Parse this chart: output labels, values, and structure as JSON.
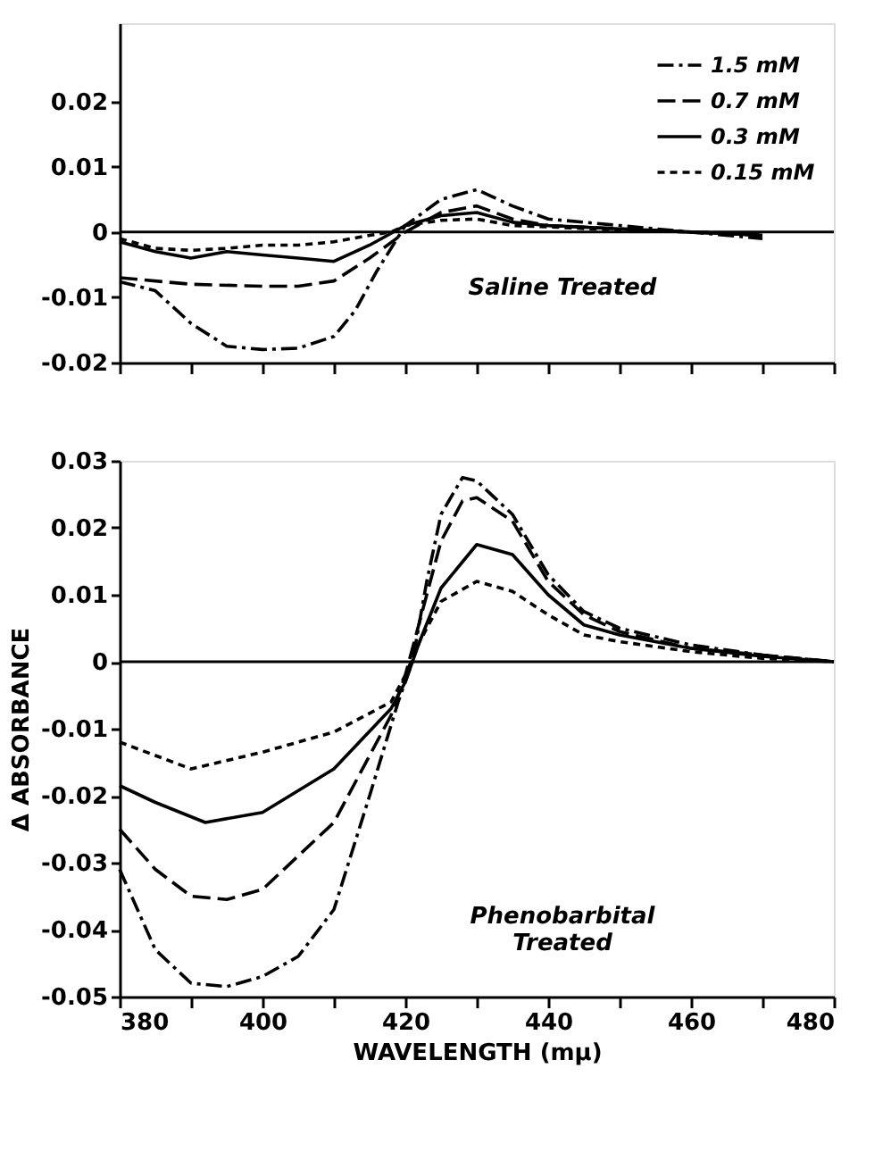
{
  "chart_data": [
    {
      "type": "line",
      "xlim": [
        380,
        480
      ],
      "xticks": [
        380,
        390,
        400,
        410,
        420,
        430,
        440,
        450,
        460,
        470,
        480
      ],
      "ylim": [
        -0.02,
        0.032
      ],
      "yticks": [
        -0.02,
        -0.01,
        0,
        0.01,
        0.02
      ],
      "tick_labels": "y",
      "grid": false,
      "legend": "top right",
      "marker": "none",
      "annotations": [
        "Saline Treated"
      ],
      "ref_lines": [
        {
          "axis": "y",
          "value": 0,
          "label": null,
          "color": "#000000",
          "line_style": "solid"
        }
      ],
      "series": [
        {
          "name": "1.5 mM",
          "color": "#000000",
          "line_style": "dashdot",
          "x": [
            380,
            385,
            390,
            395,
            400,
            405,
            410,
            413,
            416,
            420,
            425,
            430,
            435,
            440,
            450,
            460,
            470
          ],
          "values": [
            -0.0076,
            -0.009,
            -0.014,
            -0.0175,
            -0.018,
            -0.0178,
            -0.016,
            -0.012,
            -0.006,
            0.001,
            0.005,
            0.0065,
            0.004,
            0.002,
            0.001,
            0.0,
            -0.001
          ]
        },
        {
          "name": "0.7 mM",
          "color": "#000000",
          "line_style": "dashed",
          "x": [
            380,
            390,
            400,
            405,
            410,
            415,
            420,
            425,
            430,
            435,
            440,
            450,
            460,
            470
          ],
          "values": [
            -0.007,
            -0.008,
            -0.0083,
            -0.0083,
            -0.0075,
            -0.004,
            0.0,
            0.003,
            0.004,
            0.002,
            0.001,
            0.0005,
            0.0,
            -0.0005
          ]
        },
        {
          "name": "0.3 mM",
          "color": "#000000",
          "line_style": "solid",
          "x": [
            380,
            385,
            390,
            395,
            400,
            405,
            410,
            415,
            420,
            425,
            430,
            435,
            440,
            450,
            460,
            470
          ],
          "values": [
            -0.0015,
            -0.003,
            -0.004,
            -0.003,
            -0.0035,
            -0.004,
            -0.0045,
            -0.002,
            0.001,
            0.0025,
            0.003,
            0.0015,
            0.001,
            0.0005,
            0.0,
            -0.0005
          ]
        },
        {
          "name": "0.15 mM",
          "color": "#000000",
          "line_style": "dotted",
          "x": [
            380,
            385,
            390,
            395,
            400,
            405,
            410,
            415,
            418,
            420,
            425,
            430,
            435,
            440,
            450,
            460,
            470
          ],
          "values": [
            -0.001,
            -0.0025,
            -0.0028,
            -0.0025,
            -0.002,
            -0.002,
            -0.0015,
            -0.0005,
            0.0,
            0.001,
            0.0018,
            0.002,
            0.001,
            0.0008,
            0.0003,
            0.0,
            -0.0003
          ]
        }
      ]
    },
    {
      "type": "line",
      "xlabel": "WAVELENGTH (mµ)",
      "ylabel": "Δ ABSORBANCE",
      "xlim": [
        380,
        480
      ],
      "xticks": [
        380,
        {
          "value": 390,
          "label": null
        },
        400,
        {
          "value": 410,
          "label": null
        },
        420,
        {
          "value": 430,
          "label": null
        },
        440,
        {
          "value": 450,
          "label": null
        },
        460,
        {
          "value": 470,
          "label": null
        },
        480
      ],
      "ylim": [
        -0.05,
        0.03
      ],
      "yticks": [
        -0.05,
        -0.04,
        -0.03,
        -0.02,
        -0.01,
        0,
        0.01,
        0.02,
        0.03
      ],
      "grid": false,
      "legend": false,
      "marker": "none",
      "annotations": [
        "Phenobarbital Treated"
      ],
      "ref_lines": [
        {
          "axis": "y",
          "value": 0,
          "label": null,
          "color": "#000000",
          "line_style": "solid"
        }
      ],
      "series": [
        {
          "color": "#000000",
          "line_style": "dashdot",
          "x": [
            380,
            385,
            390,
            395,
            400,
            405,
            410,
            415,
            419,
            421,
            423,
            425,
            428,
            430,
            435,
            440,
            445,
            450,
            460,
            470,
            480
          ],
          "values": [
            -0.031,
            -0.043,
            -0.048,
            -0.0485,
            -0.047,
            -0.044,
            -0.037,
            -0.02,
            -0.006,
            0.0,
            0.012,
            0.022,
            0.0275,
            0.027,
            0.022,
            0.013,
            0.0075,
            0.005,
            0.0025,
            0.001,
            0.0
          ]
        },
        {
          "color": "#000000",
          "line_style": "dashed",
          "x": [
            380,
            385,
            390,
            395,
            400,
            410,
            418,
            420,
            422,
            425,
            428,
            430,
            435,
            440,
            445,
            450,
            460,
            470,
            480
          ],
          "values": [
            -0.025,
            -0.031,
            -0.035,
            -0.0355,
            -0.034,
            -0.024,
            -0.008,
            -0.002,
            0.006,
            0.018,
            0.024,
            0.0245,
            0.021,
            0.012,
            0.007,
            0.0045,
            0.002,
            0.001,
            0.0
          ]
        },
        {
          "color": "#000000",
          "line_style": "solid",
          "x": [
            380,
            385,
            392,
            400,
            410,
            418,
            420,
            422,
            425,
            430,
            435,
            440,
            445,
            450,
            460,
            470,
            480
          ],
          "values": [
            -0.0185,
            -0.021,
            -0.024,
            -0.0225,
            -0.016,
            -0.007,
            -0.003,
            0.003,
            0.011,
            0.0175,
            0.016,
            0.01,
            0.0055,
            0.004,
            0.002,
            0.0008,
            0.0
          ]
        },
        {
          "color": "#000000",
          "line_style": "dotted",
          "x": [
            380,
            390,
            400,
            410,
            418,
            420,
            422,
            425,
            430,
            435,
            440,
            445,
            450,
            460,
            470,
            480
          ],
          "values": [
            -0.012,
            -0.016,
            -0.0135,
            -0.0105,
            -0.006,
            -0.002,
            0.003,
            0.009,
            0.012,
            0.0105,
            0.007,
            0.004,
            0.003,
            0.0015,
            0.0005,
            0.0
          ]
        }
      ]
    }
  ]
}
